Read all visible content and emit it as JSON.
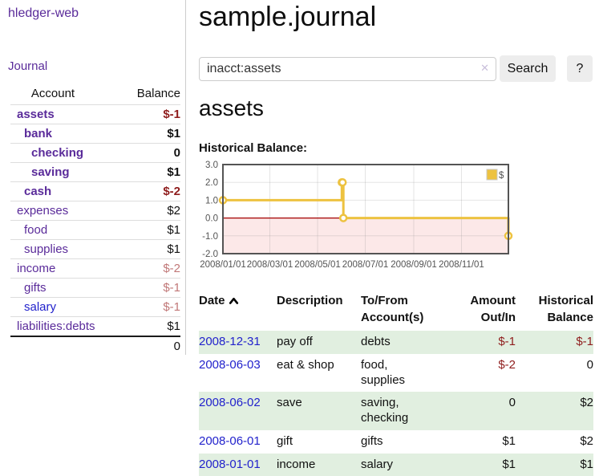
{
  "app": {
    "title": "hledger-web",
    "nav_journal": "Journal"
  },
  "sidebar": {
    "accounts_header": {
      "account": "Account",
      "balance": "Balance"
    },
    "accounts": [
      {
        "name": "assets",
        "balance": "$-1",
        "indent": 1,
        "bold": true,
        "balance_color": "negative-strong"
      },
      {
        "name": "bank",
        "balance": "$1",
        "indent": 2,
        "bold": true,
        "balance_color": "normal"
      },
      {
        "name": "checking",
        "balance": "0",
        "indent": 3,
        "bold": true,
        "balance_color": "normal"
      },
      {
        "name": "saving",
        "balance": "$1",
        "indent": 3,
        "bold": true,
        "balance_color": "normal"
      },
      {
        "name": "cash",
        "balance": "$-2",
        "indent": 2,
        "bold": true,
        "balance_color": "negative-strong"
      },
      {
        "name": "expenses",
        "balance": "$2",
        "indent": 1,
        "bold": false,
        "balance_color": "normal"
      },
      {
        "name": "food",
        "balance": "$1",
        "indent": 2,
        "bold": false,
        "balance_color": "normal"
      },
      {
        "name": "supplies",
        "balance": "$1",
        "indent": 2,
        "bold": false,
        "balance_color": "normal"
      },
      {
        "name": "income",
        "balance": "$-2",
        "indent": 1,
        "bold": false,
        "balance_color": "negative-soft"
      },
      {
        "name": "gifts",
        "balance": "$-1",
        "indent": 2,
        "bold": false,
        "balance_color": "negative-soft"
      },
      {
        "name": "salary",
        "balance": "$-1",
        "indent": 2,
        "bold": false,
        "balance_color": "negative-soft",
        "link_color": "blue"
      },
      {
        "name": "liabilities:debts",
        "balance": "$1",
        "indent": 1,
        "bold": false,
        "balance_color": "normal"
      }
    ],
    "total": "0"
  },
  "header": {
    "title": "sample.journal"
  },
  "search": {
    "query": "inacct:assets",
    "clear_icon": "✕",
    "button": "Search",
    "help_button": "?"
  },
  "account_page": {
    "title": "assets",
    "chart_label": "Historical Balance:"
  },
  "chart_data": {
    "type": "line",
    "style": "step",
    "title": "Historical Balance:",
    "series": [
      {
        "name": "$",
        "color": "#edc240",
        "points": [
          [
            "2008-01-01",
            1
          ],
          [
            "2008-06-01",
            2
          ],
          [
            "2008-06-02",
            2
          ],
          [
            "2008-06-03",
            0
          ],
          [
            "2008-12-31",
            -1
          ]
        ]
      }
    ],
    "x_range": [
      "2008-01-01",
      "2008-12-31"
    ],
    "y_range": [
      -2,
      3
    ],
    "x_ticks": [
      "2008/01/01",
      "2008/03/01",
      "2008/05/01",
      "2008/07/01",
      "2008/09/01",
      "2008/11/01"
    ],
    "y_ticks": [
      -2.0,
      -1.0,
      0.0,
      1.0,
      2.0,
      3.0
    ],
    "grid": true,
    "legend_position": "top-right",
    "negative_region_fill": "#fce8e8",
    "zero_line_color": "#a40000",
    "border_color": "#545454"
  },
  "register": {
    "columns": [
      "Date",
      "Description",
      "To/From Account(s)",
      "Amount Out/In",
      "Historical Balance"
    ],
    "rows": [
      {
        "date": "2008-12-31",
        "description": "pay off",
        "accounts": "debts",
        "amount": "$-1",
        "balance": "$-1"
      },
      {
        "date": "2008-06-03",
        "description": "eat & shop",
        "accounts": "food, supplies",
        "amount": "$-2",
        "balance": "0"
      },
      {
        "date": "2008-06-02",
        "description": "save",
        "accounts": "saving, checking",
        "amount": "0",
        "balance": "$2"
      },
      {
        "date": "2008-06-01",
        "description": "gift",
        "accounts": "gifts",
        "amount": "$1",
        "balance": "$2"
      },
      {
        "date": "2008-01-01",
        "description": "income",
        "accounts": "salary",
        "amount": "$1",
        "balance": "$1"
      }
    ]
  }
}
